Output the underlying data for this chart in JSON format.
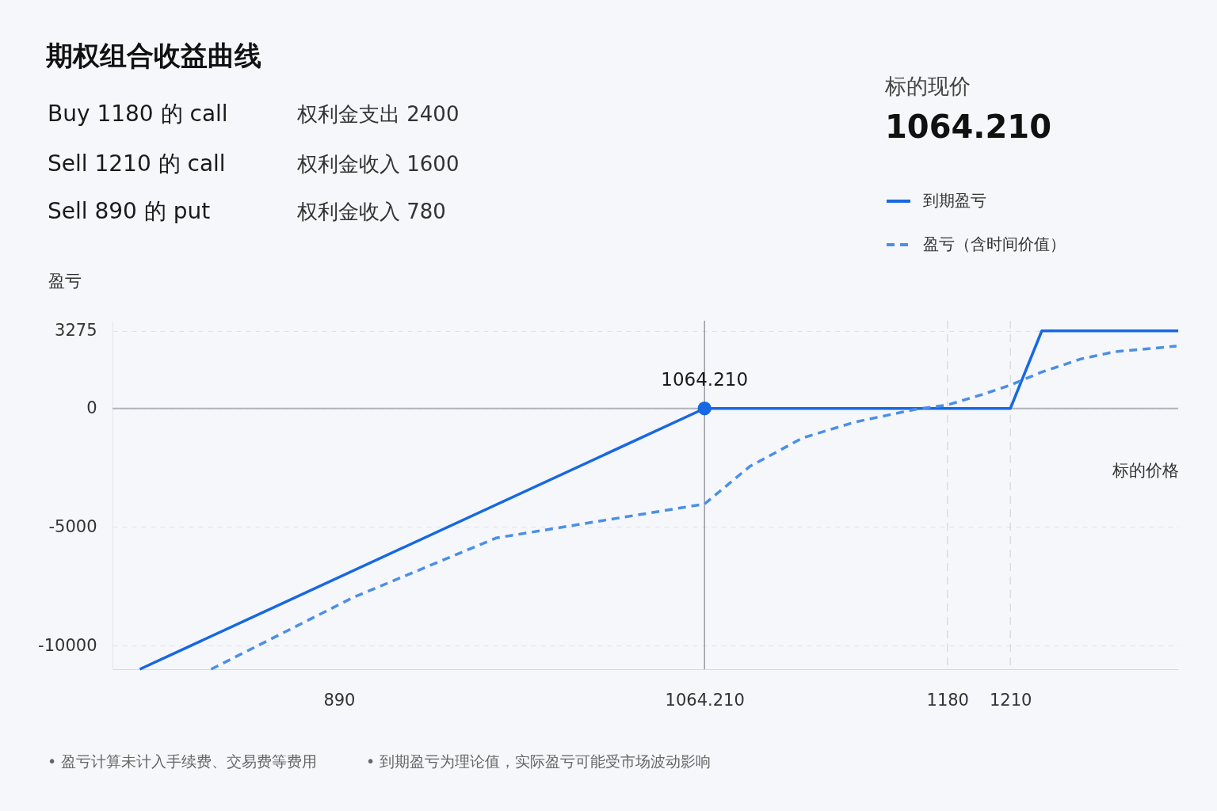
{
  "chart_data": {
    "type": "line",
    "title": "期权组合收益曲线",
    "xlabel": "标的价格",
    "ylabel": "盈亏",
    "annotations": [
      "Buy 1180 的 call",
      "权利金支出 2400",
      "Sell 1210 的 call",
      "权利金收入 1600",
      "Sell 890 的 put",
      "权利金收入 780",
      "标的现价",
      "1064.210",
      "• 盈亏计算未计入手续费、交易费等费用",
      "• 到期盈亏为理论值，实际盈亏可能受市场波动影响",
      {
        "text": "1064.210",
        "x": 1064.21,
        "y": 0
      }
    ],
    "series": [
      {
        "name": "到期盈亏",
        "color": "#1668e3",
        "line_style": "solid",
        "x": [
          795,
          1064.21,
          1210,
          1225,
          1290
        ],
        "values": [
          -11000,
          0,
          0,
          3275,
          3275
        ]
      },
      {
        "name": "盈亏（含时间价值）",
        "color": "#4a8fe8",
        "line_style": "dashed",
        "x": [
          829,
          897,
          965,
          1064.21,
          1085.7,
          1111,
          1136.3,
          1164.5,
          1180,
          1196,
          1210,
          1224.6,
          1243.7,
          1259.5,
          1289.2
        ],
        "values": [
          -11000,
          -7960,
          -5460,
          -4030,
          -2450,
          -1240,
          -565,
          -40,
          150,
          570,
          985,
          1525,
          2090,
          2390,
          2630
        ]
      }
    ],
    "ref_lines": [
      {
        "axis": "y",
        "value": 0,
        "color": "#b0b3ba",
        "line_style": "solid"
      },
      {
        "axis": "x",
        "value": 1064.21,
        "color": "#8a8d94",
        "line_style": "solid"
      },
      {
        "axis": "x",
        "value": 1180,
        "color": "#d6d8de",
        "line_style": "dashed"
      },
      {
        "axis": "x",
        "value": 1210,
        "color": "#d6d8de",
        "line_style": "dashed"
      }
    ],
    "xlim": [
      782,
      1290
    ],
    "ylim": [
      -11000,
      3700
    ],
    "xticks": [
      890,
      {
        "value": 1064.21,
        "label": "1064.210"
      },
      1180,
      1210
    ],
    "yticks": [
      3275,
      0,
      -5000,
      -10000
    ],
    "grid": "y",
    "legend": "top right",
    "marker": "none"
  }
}
